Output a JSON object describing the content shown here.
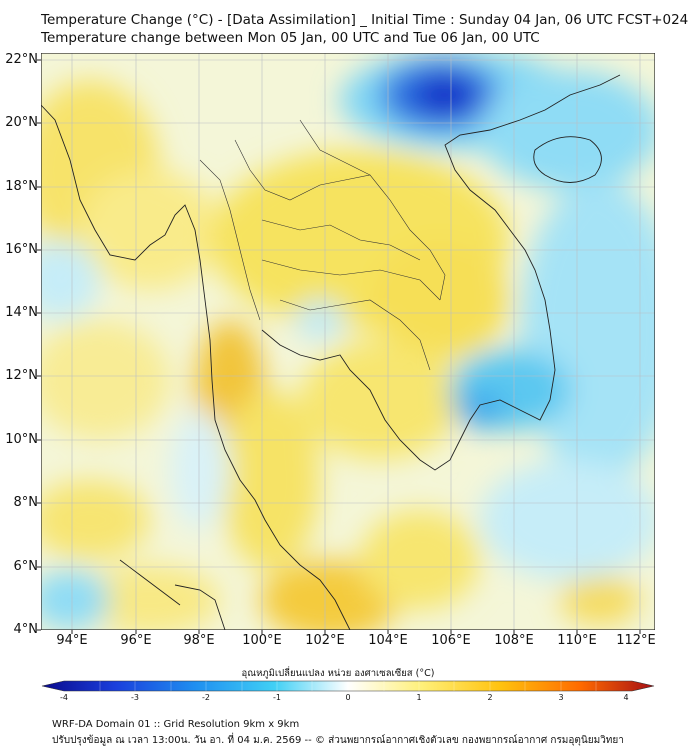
{
  "header": {
    "title_line1": "Temperature Change (°C) - [Data Assimilation] _ Initial Time : Sunday 04 Jan, 06 UTC FCST+024",
    "title_line2": "Temperature change between Mon 05 Jan, 00 UTC and Tue 06 Jan, 00 UTC"
  },
  "axes": {
    "lat_labels": [
      "22°N",
      "20°N",
      "18°N",
      "16°N",
      "14°N",
      "12°N",
      "10°N",
      "8°N",
      "6°N",
      "4°N"
    ],
    "lon_labels": [
      "94°E",
      "96°E",
      "98°E",
      "100°E",
      "102°E",
      "104°E",
      "106°E",
      "108°E",
      "110°E",
      "112°E"
    ],
    "lat_range": [
      4,
      22.2
    ],
    "lon_range": [
      93,
      112.5
    ]
  },
  "colorbar": {
    "title": "อุณหภูมิเปลี่ยนแปลง หน่วย องศาเซลเซียส (°C)",
    "ticks": [
      "-4",
      "-3",
      "-2",
      "-1",
      "0",
      "1",
      "2",
      "3",
      "4"
    ],
    "range": [
      -4,
      4
    ],
    "colors": [
      "#0a0a8c",
      "#1a3fdc",
      "#1f8ff0",
      "#41d0f5",
      "#ffffff",
      "#fff07a",
      "#ffc20e",
      "#ff6a00",
      "#a50f15"
    ]
  },
  "footer": {
    "line1": "WRF-DA Domain 01 :: Grid Resolution 9km x 9km",
    "line2": "ปรับปรุงข้อมูล ณ เวลา 13:00น. วัน อา. ที่ 04 ม.ค. 2569 -- © ส่วนพยากรณ์อากาศเชิงตัวเลข กองพยากรณ์อากาศ กรมอุตุนิยมวิทยา"
  }
}
